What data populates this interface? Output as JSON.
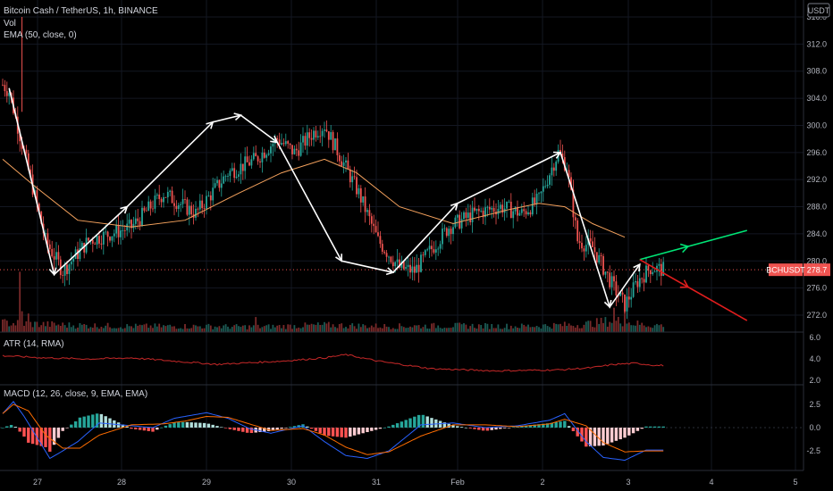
{
  "header": {
    "title": "Bitcoin Cash / TetherUS, 1h, BINANCE",
    "vol_label": "Vol",
    "ema_label": "EMA (50, close, 0)",
    "currency_button": "USDT"
  },
  "price_tag": {
    "symbol": "BCHUSDT",
    "value": "278.7"
  },
  "colors": {
    "up": "#26a69a",
    "down": "#ef5350",
    "ema": "#f5a25d",
    "atr": "#c62828",
    "macd_line": "#2962ff",
    "signal_line": "#ff6d00",
    "arrow_up": "#00e676",
    "arrow_down": "#e11d1d",
    "zigzag": "#ffffff",
    "tag_bg": "#ef5350"
  },
  "chart_data": [
    {
      "type": "candlestick",
      "title": "Bitcoin Cash / TetherUS, 1h, BINANCE",
      "y_ticks": [
        "316.0",
        "312.0",
        "308.0",
        "304.0",
        "300.0",
        "296.0",
        "292.0",
        "288.0",
        "284.0",
        "280.0",
        "276.0",
        "272.0"
      ],
      "x_ticks": [
        "27",
        "28",
        "29",
        "30",
        "31",
        "Feb",
        "2",
        "3",
        "4",
        "5"
      ],
      "ylim": [
        269.5,
        318.5
      ],
      "last_price": 278.7,
      "price_path": [
        [
          0,
          306
        ],
        [
          3,
          305
        ],
        [
          10,
          296
        ],
        [
          20,
          283
        ],
        [
          28,
          278.5
        ],
        [
          40,
          283
        ],
        [
          60,
          285
        ],
        [
          75,
          290
        ],
        [
          90,
          287
        ],
        [
          105,
          293
        ],
        [
          118,
          295
        ],
        [
          128,
          298
        ],
        [
          136,
          296
        ],
        [
          145,
          299
        ],
        [
          150,
          300
        ],
        [
          158,
          295
        ],
        [
          166,
          290
        ],
        [
          175,
          283
        ],
        [
          185,
          279
        ],
        [
          192,
          278.5
        ],
        [
          198,
          281
        ],
        [
          208,
          285
        ],
        [
          220,
          287
        ],
        [
          232,
          288
        ],
        [
          242,
          287
        ],
        [
          250,
          289
        ],
        [
          255,
          293
        ],
        [
          259,
          296
        ],
        [
          263,
          294
        ],
        [
          268,
          283
        ],
        [
          275,
          282
        ],
        [
          285,
          276
        ],
        [
          290,
          273.5
        ],
        [
          296,
          277
        ],
        [
          302,
          279
        ],
        [
          308,
          278.7
        ]
      ],
      "ema_path": [
        [
          0,
          295
        ],
        [
          15,
          291
        ],
        [
          35,
          286
        ],
        [
          60,
          285
        ],
        [
          85,
          286
        ],
        [
          110,
          290
        ],
        [
          130,
          293
        ],
        [
          150,
          295
        ],
        [
          165,
          293
        ],
        [
          185,
          288
        ],
        [
          210,
          285.5
        ],
        [
          235,
          287.5
        ],
        [
          250,
          288.5
        ],
        [
          262,
          288
        ],
        [
          275,
          285.5
        ],
        [
          290,
          283.5
        ]
      ],
      "zigzag": [
        [
          3,
          305.5
        ],
        [
          24,
          278
        ],
        [
          58,
          288
        ],
        [
          98,
          300.5
        ],
        [
          111,
          301.5
        ],
        [
          128,
          297.5
        ],
        [
          158,
          280
        ],
        [
          182,
          278.3
        ],
        [
          212,
          288.5
        ],
        [
          260,
          296
        ],
        [
          283,
          273.2
        ],
        [
          297,
          279.5
        ]
      ],
      "projection_up": [
        [
          297,
          280.2
        ],
        [
          347,
          284.5
        ]
      ],
      "projection_down": [
        [
          297,
          280.2
        ],
        [
          347,
          271.2
        ]
      ],
      "volume_path": [
        [
          0,
          0.8
        ],
        [
          15,
          0.7
        ],
        [
          30,
          0.6
        ],
        [
          60,
          0.5
        ],
        [
          90,
          0.5
        ],
        [
          120,
          0.45
        ],
        [
          150,
          0.6
        ],
        [
          180,
          0.5
        ],
        [
          210,
          0.55
        ],
        [
          240,
          0.5
        ],
        [
          270,
          0.65
        ],
        [
          285,
          1.0
        ],
        [
          300,
          0.6
        ]
      ],
      "volume_spikes": [
        [
          8,
          5.2
        ],
        [
          9,
          1.8
        ],
        [
          12,
          1.6
        ],
        [
          118,
          1.3
        ],
        [
          285,
          2.1
        ],
        [
          290,
          1.9
        ]
      ]
    },
    {
      "type": "line",
      "title": "ATR (14, RMA)",
      "y_ticks": [
        "6.0",
        "4.0",
        "2.0"
      ],
      "ylim": [
        1.7,
        6.4
      ],
      "path": [
        [
          0,
          4.3
        ],
        [
          20,
          4.1
        ],
        [
          40,
          4.0
        ],
        [
          60,
          4.1
        ],
        [
          80,
          3.8
        ],
        [
          100,
          3.5
        ],
        [
          110,
          3.6
        ],
        [
          130,
          3.8
        ],
        [
          150,
          4.1
        ],
        [
          160,
          4.4
        ],
        [
          175,
          3.8
        ],
        [
          200,
          3.1
        ],
        [
          230,
          2.9
        ],
        [
          260,
          3.0
        ],
        [
          275,
          3.2
        ],
        [
          285,
          3.5
        ],
        [
          295,
          3.6
        ],
        [
          305,
          3.4
        ]
      ]
    },
    {
      "type": "histogram+line",
      "title": "MACD (12, 26, close, 9, EMA, EMA)",
      "y_ticks": [
        "2.5",
        "0.0",
        "-2.5"
      ],
      "ylim": [
        -4.5,
        4.5
      ],
      "macd_path": [
        [
          0,
          1.5
        ],
        [
          5,
          2.8
        ],
        [
          10,
          1.2
        ],
        [
          18,
          -1.8
        ],
        [
          22,
          -3.3
        ],
        [
          28,
          -2.5
        ],
        [
          35,
          -1.5
        ],
        [
          45,
          0.5
        ],
        [
          60,
          0.2
        ],
        [
          70,
          0.0
        ],
        [
          80,
          1.0
        ],
        [
          95,
          1.6
        ],
        [
          105,
          1.0
        ],
        [
          115,
          -0.1
        ],
        [
          125,
          -0.6
        ],
        [
          140,
          0.2
        ],
        [
          150,
          -1.5
        ],
        [
          160,
          -3.0
        ],
        [
          170,
          -3.3
        ],
        [
          180,
          -2.5
        ],
        [
          195,
          0.3
        ],
        [
          210,
          0.5
        ],
        [
          225,
          0.0
        ],
        [
          240,
          0.2
        ],
        [
          255,
          0.8
        ],
        [
          262,
          1.5
        ],
        [
          272,
          -1.5
        ],
        [
          280,
          -3.2
        ],
        [
          290,
          -3.5
        ],
        [
          300,
          -2.4
        ]
      ],
      "signal_path": [
        [
          0,
          1.5
        ],
        [
          5,
          2.5
        ],
        [
          12,
          1.8
        ],
        [
          20,
          -0.8
        ],
        [
          28,
          -2.2
        ],
        [
          36,
          -2.2
        ],
        [
          45,
          -0.8
        ],
        [
          60,
          0.3
        ],
        [
          75,
          0.4
        ],
        [
          85,
          0.7
        ],
        [
          95,
          1.2
        ],
        [
          105,
          1.1
        ],
        [
          115,
          0.4
        ],
        [
          125,
          -0.3
        ],
        [
          140,
          -0.1
        ],
        [
          150,
          -0.8
        ],
        [
          160,
          -2.1
        ],
        [
          170,
          -2.9
        ],
        [
          180,
          -2.6
        ],
        [
          195,
          -0.9
        ],
        [
          210,
          0.3
        ],
        [
          225,
          0.3
        ],
        [
          240,
          0.1
        ],
        [
          255,
          0.4
        ],
        [
          262,
          0.9
        ],
        [
          272,
          0.2
        ],
        [
          280,
          -1.6
        ],
        [
          290,
          -2.6
        ],
        [
          300,
          -2.5
        ]
      ]
    }
  ]
}
